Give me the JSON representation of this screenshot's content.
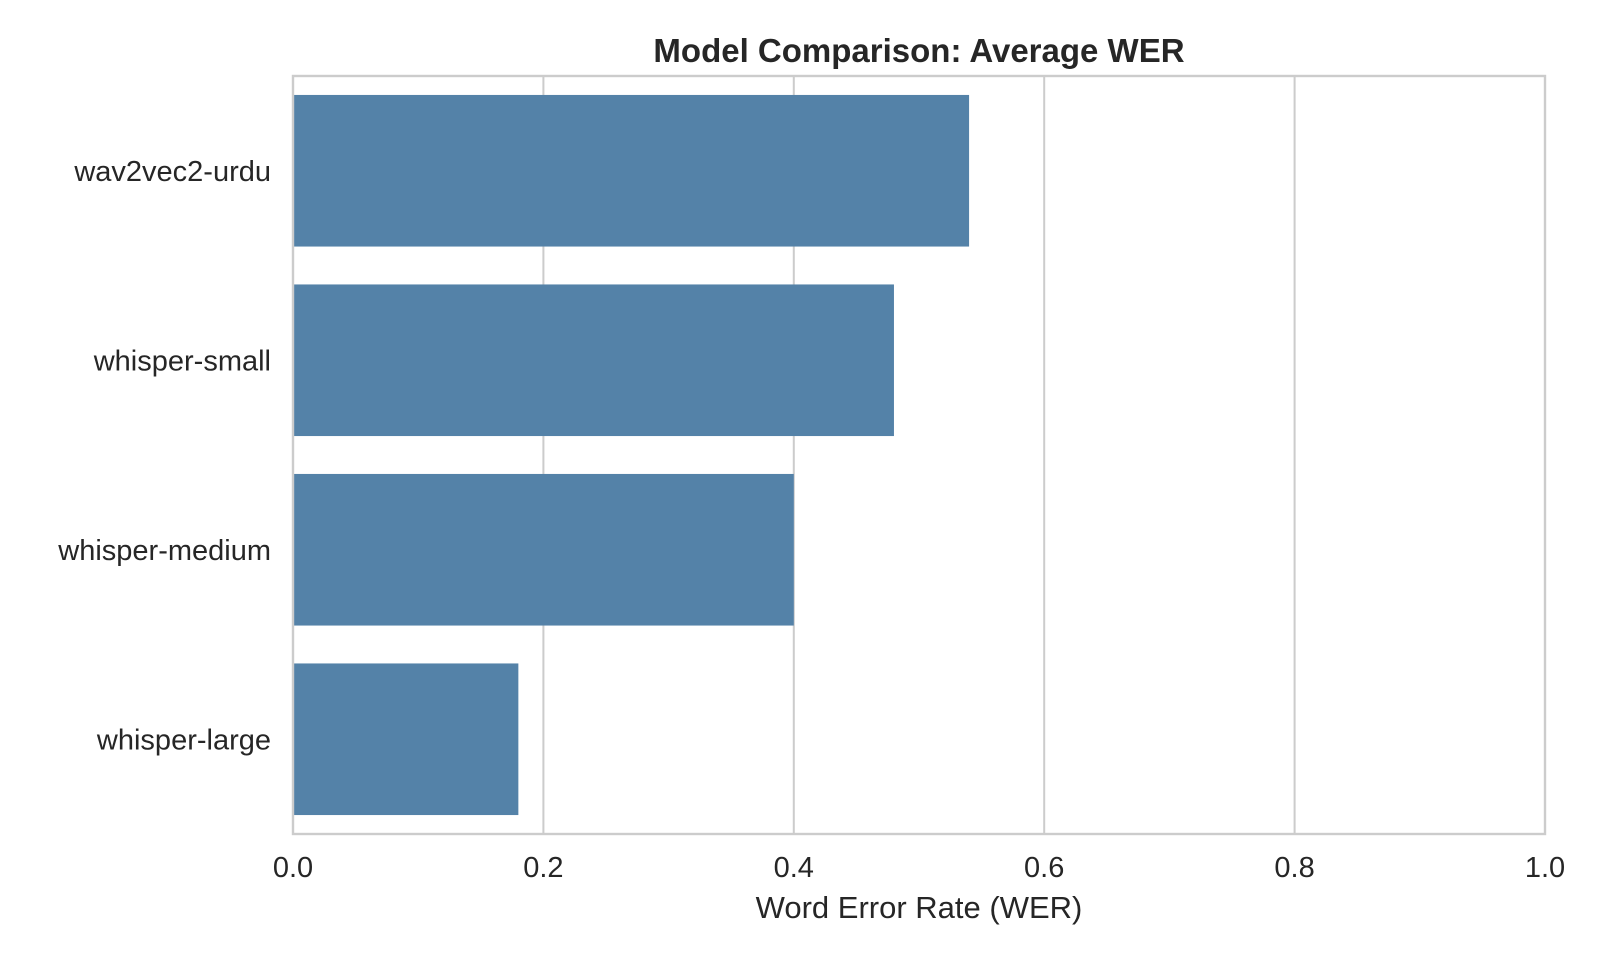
{
  "chart_data": {
    "type": "bar",
    "orientation": "horizontal",
    "title": "Model Comparison: Average WER",
    "xlabel": "Word Error Rate (WER)",
    "ylabel": "",
    "categories": [
      "wav2vec2-urdu",
      "whisper-small",
      "whisper-medium",
      "whisper-large"
    ],
    "values": [
      0.54,
      0.48,
      0.4,
      0.18
    ],
    "xlim": [
      0.0,
      1.0
    ],
    "xticks": [
      "0.0",
      "0.2",
      "0.4",
      "0.6",
      "0.8",
      "1.0"
    ],
    "grid": "vertical",
    "legend": "none",
    "bar_color": "#5482a8"
  }
}
